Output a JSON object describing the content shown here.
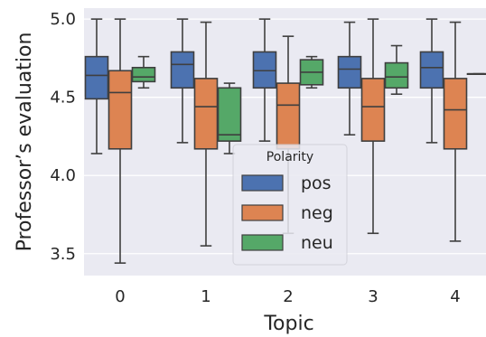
{
  "chart_data": {
    "type": "boxplot",
    "xlabel": "Topic",
    "ylabel": "Professor’s evaluation",
    "categories": [
      "0",
      "1",
      "2",
      "3",
      "4"
    ],
    "ylim": [
      3.36,
      5.07
    ],
    "yticks": [
      "3.5",
      "4.0",
      "4.5",
      "5.0"
    ],
    "grid": true,
    "legend": {
      "title": "Polarity",
      "placement": "lower-center"
    },
    "series": [
      {
        "name": "pos",
        "color": "#4c72b0",
        "boxes": [
          {
            "whislo": 4.14,
            "q1": 4.49,
            "med": 4.64,
            "q3": 4.76,
            "whishi": 5.0
          },
          {
            "whislo": 4.21,
            "q1": 4.56,
            "med": 4.71,
            "q3": 4.79,
            "whishi": 5.0
          },
          {
            "whislo": 4.22,
            "q1": 4.56,
            "med": 4.67,
            "q3": 4.79,
            "whishi": 5.0
          },
          {
            "whislo": 4.26,
            "q1": 4.56,
            "med": 4.68,
            "q3": 4.76,
            "whishi": 4.98
          },
          {
            "whislo": 4.21,
            "q1": 4.56,
            "med": 4.69,
            "q3": 4.79,
            "whishi": 5.0
          }
        ]
      },
      {
        "name": "neg",
        "color": "#dd8452",
        "boxes": [
          {
            "whislo": 3.44,
            "q1": 4.17,
            "med": 4.53,
            "q3": 4.67,
            "whishi": 5.0
          },
          {
            "whislo": 3.55,
            "q1": 4.17,
            "med": 4.44,
            "q3": 4.62,
            "whishi": 4.98
          },
          {
            "whislo": 3.63,
            "q1": 4.17,
            "med": 4.45,
            "q3": 4.59,
            "whishi": 4.89
          },
          {
            "whislo": 3.63,
            "q1": 4.22,
            "med": 4.44,
            "q3": 4.62,
            "whishi": 5.0
          },
          {
            "whislo": 3.58,
            "q1": 4.17,
            "med": 4.42,
            "q3": 4.62,
            "whishi": 4.98
          }
        ]
      },
      {
        "name": "neu",
        "color": "#55a868",
        "boxes": [
          {
            "whislo": 4.56,
            "q1": 4.6,
            "med": 4.63,
            "q3": 4.69,
            "whishi": 4.76
          },
          {
            "whislo": 4.14,
            "q1": 4.22,
            "med": 4.26,
            "q3": 4.56,
            "whishi": 4.59
          },
          {
            "whislo": 4.56,
            "q1": 4.58,
            "med": 4.66,
            "q3": 4.74,
            "whishi": 4.76
          },
          {
            "whislo": 4.52,
            "q1": 4.56,
            "med": 4.63,
            "q3": 4.72,
            "whishi": 4.83
          },
          {
            "whislo": 4.65,
            "q1": 4.65,
            "med": 4.65,
            "q3": 4.65,
            "whishi": 4.65
          }
        ]
      }
    ]
  }
}
